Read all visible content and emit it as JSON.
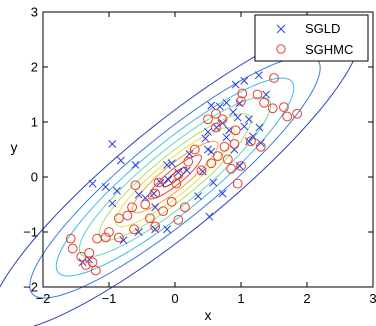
{
  "chart_data": {
    "type": "scatter",
    "title": "",
    "xlabel": "x",
    "ylabel": "y",
    "xlim": [
      -2,
      3
    ],
    "ylim": [
      -2,
      3
    ],
    "xticks": [
      -2,
      -1,
      0,
      1,
      2,
      3
    ],
    "yticks": [
      -2,
      -1,
      0,
      1,
      2,
      3
    ],
    "xtick_labels": [
      "−2",
      "−1",
      "0",
      "1",
      "2",
      "3"
    ],
    "ytick_labels": [
      "−2",
      "−1",
      "0",
      "1",
      "2",
      "3"
    ],
    "grid": false,
    "legend_position": "top-right",
    "contours": {
      "center": [
        0,
        0
      ],
      "covariance": [
        [
          1.0,
          0.9
        ],
        [
          0.9,
          1.0
        ]
      ],
      "levels": [
        {
          "mahalanobis": 2.8,
          "color": "#3040c0"
        },
        {
          "mahalanobis": 2.2,
          "color": "#3a7be0"
        },
        {
          "mahalanobis": 1.8,
          "color": "#3fb9e8"
        },
        {
          "mahalanobis": 1.45,
          "color": "#63d6b8"
        },
        {
          "mahalanobis": 1.15,
          "color": "#a8e06a"
        },
        {
          "mahalanobis": 0.9,
          "color": "#e7e04a"
        },
        {
          "mahalanobis": 0.65,
          "color": "#f6a23a"
        },
        {
          "mahalanobis": 0.4,
          "color": "#e84a2a"
        },
        {
          "mahalanobis": 0.18,
          "color": "#b01818"
        }
      ]
    },
    "series": [
      {
        "name": "SGLD",
        "marker": "x",
        "color": "#2f3fe0",
        "points": [
          [
            1.27,
            1.85
          ],
          [
            0.92,
            1.68
          ],
          [
            1.05,
            1.75
          ],
          [
            1.38,
            1.5
          ],
          [
            0.78,
            1.35
          ],
          [
            0.98,
            1.34
          ],
          [
            0.55,
            1.3
          ],
          [
            0.68,
            1.28
          ],
          [
            0.88,
            1.18
          ],
          [
            0.95,
            1.08
          ],
          [
            1.12,
            1.05
          ],
          [
            0.72,
            0.98
          ],
          [
            0.63,
            0.9
          ],
          [
            0.82,
            0.85
          ],
          [
            1.05,
            0.92
          ],
          [
            0.5,
            0.82
          ],
          [
            0.78,
            0.72
          ],
          [
            1.18,
            0.74
          ],
          [
            0.46,
            0.7
          ],
          [
            1.12,
            0.65
          ],
          [
            1.3,
            0.62
          ],
          [
            0.5,
            0.5
          ],
          [
            0.55,
            0.46
          ],
          [
            0.9,
            0.5
          ],
          [
            0.22,
            0.42
          ],
          [
            0.18,
            0.12
          ],
          [
            0.05,
            0.08
          ],
          [
            -0.05,
            0.25
          ],
          [
            -0.12,
            0.22
          ],
          [
            0.42,
            0.1
          ],
          [
            -0.32,
            -0.3
          ],
          [
            -0.22,
            -0.1
          ],
          [
            -0.45,
            -0.38
          ],
          [
            -0.55,
            -0.32
          ],
          [
            -0.88,
            -0.25
          ],
          [
            -0.82,
            0.3
          ],
          [
            -0.95,
            0.6
          ],
          [
            -0.6,
            0.22
          ],
          [
            -1.05,
            -0.18
          ],
          [
            -1.25,
            -0.12
          ],
          [
            -0.1,
            -0.05
          ],
          [
            0.58,
            -0.1
          ],
          [
            0.35,
            -0.35
          ],
          [
            -0.95,
            -0.48
          ],
          [
            -0.3,
            -0.95
          ],
          [
            -0.12,
            -0.95
          ],
          [
            -0.55,
            -1.0
          ],
          [
            0.52,
            -0.72
          ],
          [
            -0.78,
            -1.15
          ],
          [
            -1.3,
            -1.5
          ],
          [
            -1.4,
            -1.55
          ],
          [
            1.28,
            0.9
          ],
          [
            0.98,
            0.2
          ],
          [
            0.72,
            -0.3
          ],
          [
            -0.3,
            -0.55
          ]
        ]
      },
      {
        "name": "SGHMC",
        "marker": "o",
        "color": "#e8402a",
        "points": [
          [
            1.5,
            1.8
          ],
          [
            1.65,
            1.27
          ],
          [
            1.85,
            1.15
          ],
          [
            1.7,
            1.1
          ],
          [
            1.48,
            1.25
          ],
          [
            1.35,
            1.35
          ],
          [
            1.0,
            1.38
          ],
          [
            1.02,
            1.52
          ],
          [
            1.25,
            1.5
          ],
          [
            0.62,
            1.15
          ],
          [
            0.5,
            1.05
          ],
          [
            0.72,
            1.05
          ],
          [
            0.62,
            0.9
          ],
          [
            0.92,
            0.85
          ],
          [
            1.15,
            0.65
          ],
          [
            1.3,
            0.55
          ],
          [
            0.9,
            0.6
          ],
          [
            0.65,
            0.38
          ],
          [
            0.55,
            0.25
          ],
          [
            0.8,
            0.32
          ],
          [
            0.95,
            -0.12
          ],
          [
            0.4,
            0.12
          ],
          [
            0.2,
            0.28
          ],
          [
            0.05,
            0.04
          ],
          [
            0.02,
            -0.12
          ],
          [
            -0.25,
            -0.1
          ],
          [
            -0.3,
            -0.3
          ],
          [
            0.15,
            -0.55
          ],
          [
            -0.45,
            -0.5
          ],
          [
            -0.65,
            -0.55
          ],
          [
            -0.72,
            -0.7
          ],
          [
            -0.85,
            -0.75
          ],
          [
            -0.38,
            -0.75
          ],
          [
            -0.18,
            -0.62
          ],
          [
            -0.05,
            -0.45
          ],
          [
            0.05,
            -0.78
          ],
          [
            -0.62,
            -0.95
          ],
          [
            -0.85,
            -1.1
          ],
          [
            -1.0,
            -1.0
          ],
          [
            -1.05,
            -1.1
          ],
          [
            -1.18,
            -1.12
          ],
          [
            -1.3,
            -1.38
          ],
          [
            -1.58,
            -1.12
          ],
          [
            -1.55,
            -1.3
          ],
          [
            -1.42,
            -1.45
          ],
          [
            -1.35,
            -1.6
          ],
          [
            -1.25,
            -1.55
          ],
          [
            -1.2,
            -1.7
          ],
          [
            -0.6,
            -0.15
          ],
          [
            -0.3,
            -0.9
          ],
          [
            0.3,
            0.5
          ],
          [
            1.0,
            0.2
          ],
          [
            0.75,
            0.55
          ],
          [
            0.85,
            0.15
          ]
        ]
      }
    ]
  }
}
